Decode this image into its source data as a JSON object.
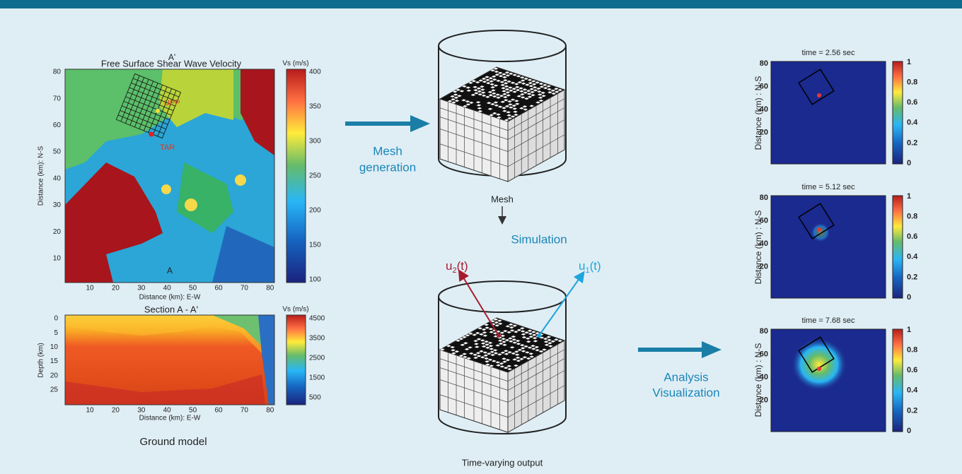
{
  "ground_model": {
    "map": {
      "title": "Free Surface Shear Wave Velocity",
      "colorbar_label": "Vs (m/s)",
      "yticks": [
        80,
        70,
        60,
        50,
        40,
        30,
        20,
        10
      ],
      "xticks": [
        10,
        20,
        30,
        40,
        50,
        60,
        70,
        80
      ],
      "ylabel": "Distance (km): N-S",
      "xlabel": "Distance (km): E-W",
      "colorbar_ticks": [
        400,
        350,
        300,
        250,
        200,
        150,
        100
      ],
      "section_top": "A'",
      "section_bottom": "A",
      "station_1": "UPP",
      "station_2": "TAR"
    },
    "section": {
      "title": "Section A - A'",
      "colorbar_label": "Vs (m/s)",
      "yticks": [
        0,
        5,
        10,
        15,
        20,
        25
      ],
      "xticks": [
        10,
        20,
        30,
        40,
        50,
        60,
        70,
        80
      ],
      "ylabel": "Depth (km)",
      "xlabel": "Distance (km): E-W",
      "colorbar_ticks": [
        4500,
        3500,
        2500,
        1500,
        500
      ]
    },
    "caption": "Ground model"
  },
  "mesh_step": {
    "lines": [
      "Mesh",
      "generation"
    ],
    "caption": "Mesh"
  },
  "simulation": {
    "label": "Simulation",
    "u2": {
      "base": "u",
      "sub": "2",
      "rest": "(t)"
    },
    "u1": {
      "base": "u",
      "sub": "1",
      "rest": "(t)"
    },
    "caption": "Time-varying output"
  },
  "analysis": {
    "lines": [
      "Analysis",
      "Visualization"
    ]
  },
  "snapshots": {
    "ylabel": "Distance (km) : N-S",
    "yticks": [
      80,
      60,
      40,
      20
    ],
    "colorbar_ticks": [
      1,
      0.8,
      0.6,
      0.4,
      0.2,
      0
    ],
    "panels": [
      {
        "title": "time = 2.56 sec"
      },
      {
        "title": "time = 5.12 sec"
      },
      {
        "title": "time = 7.68 sec"
      }
    ]
  }
}
